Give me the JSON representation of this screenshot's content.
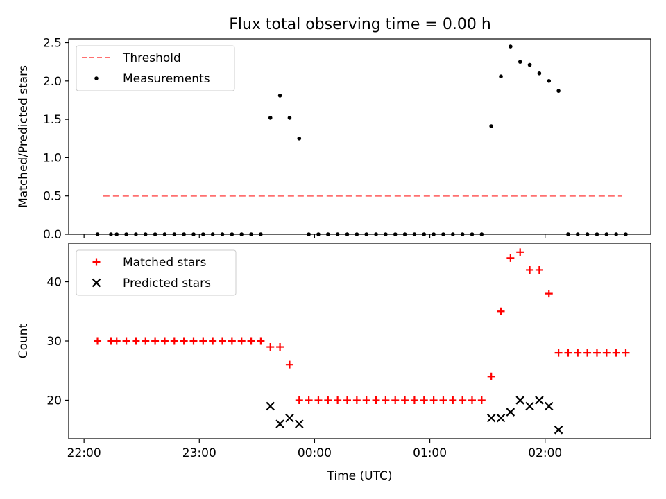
{
  "figure": {
    "title": "Flux total observing time = 0.00 h"
  },
  "chart_data": [
    {
      "type": "scatter",
      "panel": "top",
      "xlabel": "",
      "ylabel": "Matched/Predicted stars",
      "ylim": [
        0,
        2.55
      ],
      "yticks": [
        0.0,
        0.5,
        1.0,
        1.5,
        2.0,
        2.5
      ],
      "ytick_labels": [
        "0.0",
        "0.5",
        "1.0",
        "1.5",
        "2.0",
        "2.5"
      ],
      "legend": {
        "placement": "top-left",
        "entries": [
          "Threshold",
          "Measurements"
        ]
      },
      "threshold": {
        "name": "Threshold",
        "value": 0.5,
        "x_start": "22:10",
        "x_end": "02:40",
        "color": "#ff7070",
        "style": "dashed"
      },
      "series": [
        {
          "name": "Measurements",
          "marker": "dot",
          "color": "#000000",
          "points": [
            [
              "22:07",
              0
            ],
            [
              "22:14",
              0
            ],
            [
              "22:17",
              0
            ],
            [
              "22:22",
              0
            ],
            [
              "22:27",
              0
            ],
            [
              "22:32",
              0
            ],
            [
              "22:37",
              0
            ],
            [
              "22:42",
              0
            ],
            [
              "22:47",
              0
            ],
            [
              "22:52",
              0
            ],
            [
              "22:57",
              0
            ],
            [
              "23:02",
              0
            ],
            [
              "23:07",
              0
            ],
            [
              "23:12",
              0
            ],
            [
              "23:17",
              0
            ],
            [
              "23:22",
              0
            ],
            [
              "23:27",
              0
            ],
            [
              "23:32",
              0
            ],
            [
              "23:37",
              1.52
            ],
            [
              "23:42",
              1.81
            ],
            [
              "23:47",
              1.52
            ],
            [
              "23:52",
              1.25
            ],
            [
              "23:57",
              0
            ],
            [
              "00:02",
              0
            ],
            [
              "00:07",
              0
            ],
            [
              "00:12",
              0
            ],
            [
              "00:17",
              0
            ],
            [
              "00:22",
              0
            ],
            [
              "00:27",
              0
            ],
            [
              "00:32",
              0
            ],
            [
              "00:37",
              0
            ],
            [
              "00:42",
              0
            ],
            [
              "00:47",
              0
            ],
            [
              "00:52",
              0
            ],
            [
              "00:57",
              0
            ],
            [
              "01:02",
              0
            ],
            [
              "01:07",
              0
            ],
            [
              "01:12",
              0
            ],
            [
              "01:17",
              0
            ],
            [
              "01:22",
              0
            ],
            [
              "01:27",
              0
            ],
            [
              "01:32",
              1.41
            ],
            [
              "01:37",
              2.06
            ],
            [
              "01:42",
              2.45
            ],
            [
              "01:47",
              2.25
            ],
            [
              "01:52",
              2.21
            ],
            [
              "01:57",
              2.1
            ],
            [
              "02:02",
              2.0
            ],
            [
              "02:07",
              1.87
            ],
            [
              "02:12",
              0
            ],
            [
              "02:17",
              0
            ],
            [
              "02:22",
              0
            ],
            [
              "02:27",
              0
            ],
            [
              "02:32",
              0
            ],
            [
              "02:37",
              0
            ],
            [
              "02:42",
              0
            ]
          ]
        }
      ]
    },
    {
      "type": "scatter",
      "panel": "bottom",
      "xlabel": "Time (UTC)",
      "ylabel": "Count",
      "ylim": [
        13.5,
        46.5
      ],
      "yticks": [
        20,
        30,
        40
      ],
      "ytick_labels": [
        "20",
        "30",
        "40"
      ],
      "xlim": [
        "21:52",
        "02:55"
      ],
      "xticks": [
        "22:00",
        "23:00",
        "00:00",
        "01:00",
        "02:00"
      ],
      "xtick_labels": [
        "22:00",
        "23:00",
        "00:00",
        "01:00",
        "02:00"
      ],
      "legend": {
        "placement": "top-left",
        "entries": [
          "Matched stars",
          "Predicted stars"
        ]
      },
      "series": [
        {
          "name": "Matched stars",
          "marker": "plus",
          "color": "#ff0000",
          "points": [
            [
              "22:07",
              30
            ],
            [
              "22:14",
              30
            ],
            [
              "22:17",
              30
            ],
            [
              "22:22",
              30
            ],
            [
              "22:27",
              30
            ],
            [
              "22:32",
              30
            ],
            [
              "22:37",
              30
            ],
            [
              "22:42",
              30
            ],
            [
              "22:47",
              30
            ],
            [
              "22:52",
              30
            ],
            [
              "22:57",
              30
            ],
            [
              "23:02",
              30
            ],
            [
              "23:07",
              30
            ],
            [
              "23:12",
              30
            ],
            [
              "23:17",
              30
            ],
            [
              "23:22",
              30
            ],
            [
              "23:27",
              30
            ],
            [
              "23:32",
              30
            ],
            [
              "23:37",
              29
            ],
            [
              "23:42",
              29
            ],
            [
              "23:47",
              26
            ],
            [
              "23:52",
              20
            ],
            [
              "23:57",
              20
            ],
            [
              "00:02",
              20
            ],
            [
              "00:07",
              20
            ],
            [
              "00:12",
              20
            ],
            [
              "00:17",
              20
            ],
            [
              "00:22",
              20
            ],
            [
              "00:27",
              20
            ],
            [
              "00:32",
              20
            ],
            [
              "00:37",
              20
            ],
            [
              "00:42",
              20
            ],
            [
              "00:47",
              20
            ],
            [
              "00:52",
              20
            ],
            [
              "00:57",
              20
            ],
            [
              "01:02",
              20
            ],
            [
              "01:07",
              20
            ],
            [
              "01:12",
              20
            ],
            [
              "01:17",
              20
            ],
            [
              "01:22",
              20
            ],
            [
              "01:27",
              20
            ],
            [
              "01:32",
              24
            ],
            [
              "01:37",
              35
            ],
            [
              "01:42",
              44
            ],
            [
              "01:47",
              45
            ],
            [
              "01:52",
              42
            ],
            [
              "01:57",
              42
            ],
            [
              "02:02",
              38
            ],
            [
              "02:07",
              28
            ],
            [
              "02:12",
              28
            ],
            [
              "02:17",
              28
            ],
            [
              "02:22",
              28
            ],
            [
              "02:27",
              28
            ],
            [
              "02:32",
              28
            ],
            [
              "02:37",
              28
            ],
            [
              "02:42",
              28
            ]
          ]
        },
        {
          "name": "Predicted stars",
          "marker": "x",
          "color": "#000000",
          "points": [
            [
              "23:37",
              19
            ],
            [
              "23:42",
              16
            ],
            [
              "23:47",
              17
            ],
            [
              "23:52",
              16
            ],
            [
              "01:32",
              17
            ],
            [
              "01:37",
              17
            ],
            [
              "01:42",
              18
            ],
            [
              "01:47",
              20
            ],
            [
              "01:52",
              19
            ],
            [
              "01:57",
              20
            ],
            [
              "02:02",
              19
            ],
            [
              "02:07",
              15
            ]
          ]
        }
      ]
    }
  ]
}
